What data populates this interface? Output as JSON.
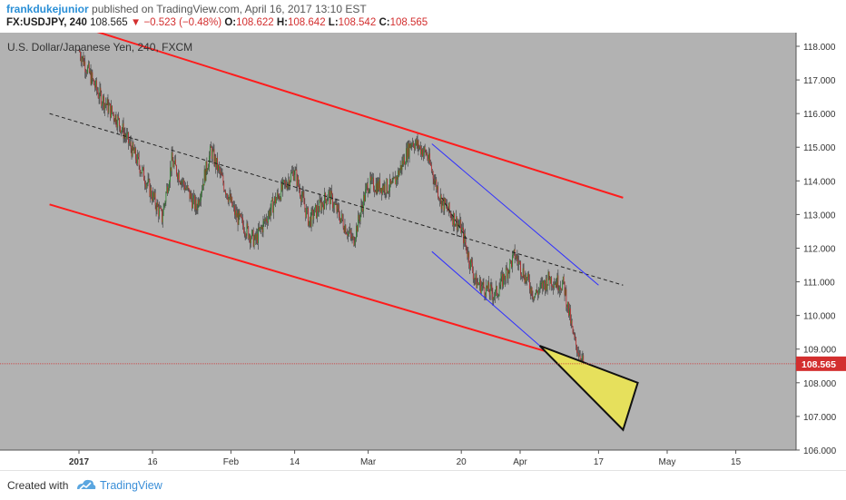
{
  "header": {
    "author": "frankdukejunior",
    "published": " published on TradingView.com, April 16, 2017 13:10 EST",
    "symbol": "FX:USDJPY",
    "interval": ", 240",
    "last": "108.565",
    "change": "−0.523 (−0.48%)",
    "o_label": "O:",
    "o_value": "108.622",
    "h_label": "H:",
    "h_value": "108.642",
    "l_label": "L:",
    "l_value": "108.542",
    "c_label": "C:",
    "c_value": "108.565"
  },
  "chart_data": {
    "type": "candlestick",
    "title": "U.S. Dollar/Japanese Yen, 240, FXCM",
    "y_ticks": [
      "118.000",
      "117.000",
      "116.000",
      "115.000",
      "114.000",
      "113.000",
      "112.000",
      "111.000",
      "110.000",
      "109.000",
      "108.000",
      "107.000",
      "106.000"
    ],
    "x_ticks": [
      "2017",
      "16",
      "Feb",
      "14",
      "Mar",
      "20",
      "Apr",
      "17",
      "May",
      "15"
    ],
    "ylim": [
      106.0,
      118.0
    ],
    "last_price_label": "108.565",
    "close_path": [
      {
        "x": "2017-01-01",
        "y": 117.9
      },
      {
        "x": "2017-01-05",
        "y": 116.6
      },
      {
        "x": "2017-01-09",
        "y": 115.8
      },
      {
        "x": "2017-01-13",
        "y": 114.6
      },
      {
        "x": "2017-01-18",
        "y": 112.9
      },
      {
        "x": "2017-01-20",
        "y": 114.6
      },
      {
        "x": "2017-01-25",
        "y": 113.2
      },
      {
        "x": "2017-01-28",
        "y": 114.9
      },
      {
        "x": "2017-02-02",
        "y": 113.0
      },
      {
        "x": "2017-02-06",
        "y": 112.2
      },
      {
        "x": "2017-02-10",
        "y": 113.4
      },
      {
        "x": "2017-02-14",
        "y": 114.3
      },
      {
        "x": "2017-02-17",
        "y": 112.8
      },
      {
        "x": "2017-02-21",
        "y": 113.6
      },
      {
        "x": "2017-02-26",
        "y": 112.2
      },
      {
        "x": "2017-03-01",
        "y": 113.9
      },
      {
        "x": "2017-03-06",
        "y": 113.8
      },
      {
        "x": "2017-03-10",
        "y": 115.2
      },
      {
        "x": "2017-03-13",
        "y": 114.8
      },
      {
        "x": "2017-03-16",
        "y": 113.4
      },
      {
        "x": "2017-03-20",
        "y": 112.6
      },
      {
        "x": "2017-03-23",
        "y": 111.0
      },
      {
        "x": "2017-03-27",
        "y": 110.6
      },
      {
        "x": "2017-03-31",
        "y": 111.8
      },
      {
        "x": "2017-04-04",
        "y": 110.6
      },
      {
        "x": "2017-04-07",
        "y": 111.1
      },
      {
        "x": "2017-04-10",
        "y": 110.9
      },
      {
        "x": "2017-04-12",
        "y": 109.3
      },
      {
        "x": "2017-04-14",
        "y": 108.565
      }
    ],
    "drawings": [
      {
        "name": "upper-channel-line",
        "color": "#ff1c1c",
        "p1": {
          "x": "2017-01-01",
          "y": 118.6
        },
        "p2": {
          "x": "2017-04-22",
          "y": 113.5
        }
      },
      {
        "name": "lower-channel-line",
        "color": "#ff1c1c",
        "p1": {
          "x": "2016-12-26",
          "y": 113.3
        },
        "p2": {
          "x": "2017-04-14",
          "y": 108.6
        }
      },
      {
        "name": "mid-channel-line",
        "color": "#222222",
        "dashed": true,
        "p1": {
          "x": "2016-12-26",
          "y": 116.0
        },
        "p2": {
          "x": "2017-04-22",
          "y": 110.9
        }
      },
      {
        "name": "short-mid-line",
        "color": "#222222",
        "dashed": true,
        "p1": {
          "x": "2017-03-16",
          "y": 113.5
        },
        "p2": {
          "x": "2017-03-21",
          "y": 112.3
        }
      },
      {
        "name": "blue-upper-line",
        "color": "#2f2fff",
        "p1": {
          "x": "2017-03-14",
          "y": 115.1
        },
        "p2": {
          "x": "2017-04-17",
          "y": 110.9
        }
      },
      {
        "name": "blue-lower-line",
        "color": "#2f2fff",
        "p1": {
          "x": "2017-03-14",
          "y": 111.9
        },
        "p2": {
          "x": "2017-04-05",
          "y": 109.1
        }
      }
    ],
    "triangle": {
      "fill": "#e6e05c",
      "points": [
        {
          "x": "2017-04-05",
          "y": 109.1
        },
        {
          "x": "2017-04-25",
          "y": 108.0
        },
        {
          "x": "2017-04-22",
          "y": 106.6
        }
      ]
    },
    "colors": {
      "up": "#1f8a1f",
      "down": "#c81e1e",
      "background": "#b2b2b2",
      "last_price": "#d32f2f"
    }
  },
  "footer": {
    "created_with": "Created with",
    "brand": "TradingView"
  }
}
